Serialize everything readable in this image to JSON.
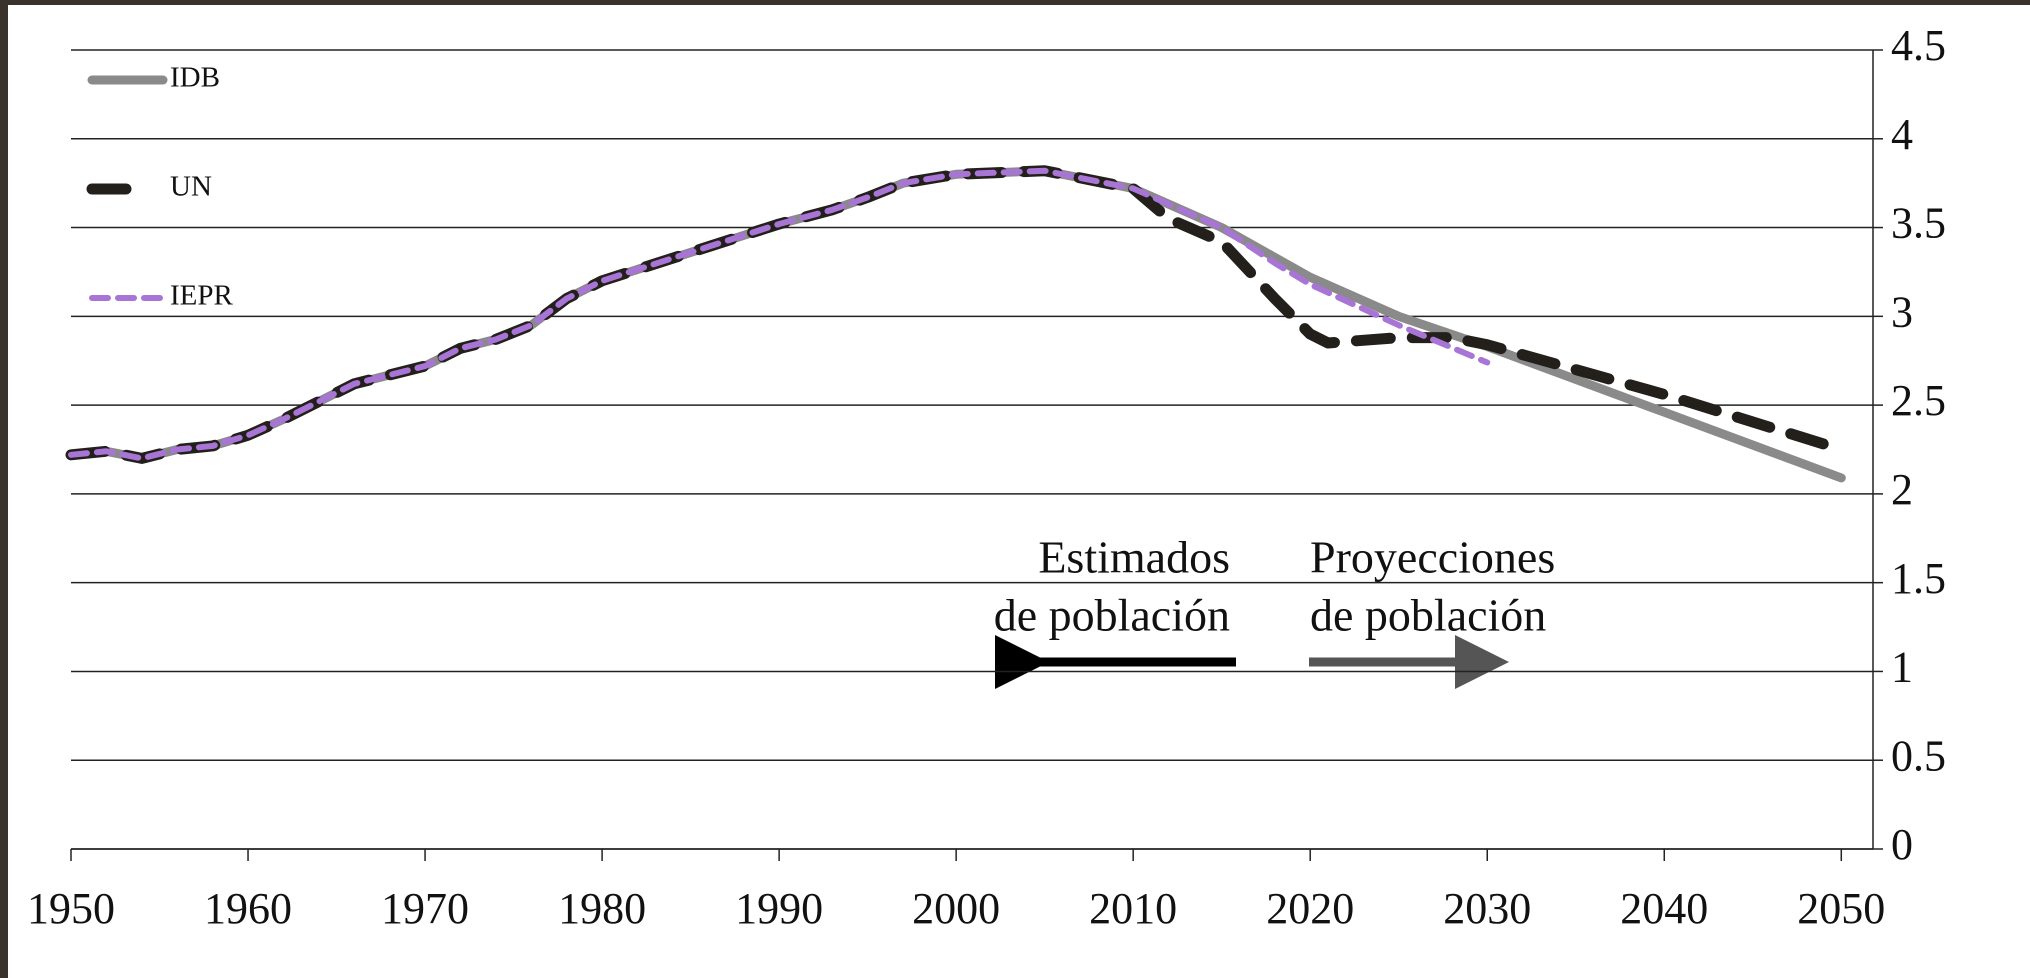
{
  "chart_data": {
    "type": "line",
    "series": [
      {
        "name": "IDB",
        "color": "#8a8a8a",
        "x": [
          1950,
          1952,
          1954,
          1956,
          1958,
          1960,
          1962,
          1964,
          1966,
          1968,
          1970,
          1972,
          1974,
          1976,
          1978,
          1980,
          1985,
          1990,
          1993,
          1995,
          1997,
          2000,
          2005,
          2010,
          2015,
          2020,
          2025,
          2030,
          2040,
          2050
        ],
        "values": [
          2.22,
          2.24,
          2.2,
          2.25,
          2.27,
          2.33,
          2.42,
          2.52,
          2.62,
          2.67,
          2.72,
          2.82,
          2.87,
          2.95,
          3.1,
          3.2,
          3.36,
          3.52,
          3.6,
          3.67,
          3.75,
          3.8,
          3.82,
          3.72,
          3.5,
          3.22,
          3.0,
          2.83,
          2.46,
          2.09
        ]
      },
      {
        "name": "UN",
        "color": "#231f1a",
        "x": [
          1950,
          1952,
          1954,
          1956,
          1958,
          1960,
          1962,
          1964,
          1966,
          1968,
          1970,
          1972,
          1974,
          1976,
          1978,
          1980,
          1985,
          1990,
          1993,
          1995,
          1997,
          2000,
          2005,
          2010,
          2012,
          2015,
          2018,
          2020,
          2021,
          2025,
          2028,
          2030,
          2040,
          2050
        ],
        "values": [
          2.22,
          2.24,
          2.2,
          2.25,
          2.27,
          2.33,
          2.42,
          2.52,
          2.62,
          2.67,
          2.72,
          2.82,
          2.87,
          2.95,
          3.1,
          3.2,
          3.36,
          3.52,
          3.6,
          3.67,
          3.75,
          3.8,
          3.82,
          3.72,
          3.55,
          3.42,
          3.1,
          2.9,
          2.85,
          2.88,
          2.88,
          2.84,
          2.56,
          2.25
        ]
      },
      {
        "name": "IEPR",
        "color": "#a875d6",
        "x": [
          1950,
          1952,
          1954,
          1956,
          1958,
          1960,
          1962,
          1964,
          1966,
          1968,
          1970,
          1972,
          1974,
          1976,
          1978,
          1980,
          1985,
          1990,
          1993,
          1995,
          1997,
          2000,
          2005,
          2010,
          2015,
          2018,
          2020,
          2025,
          2030
        ],
        "values": [
          2.22,
          2.24,
          2.2,
          2.25,
          2.27,
          2.33,
          2.42,
          2.52,
          2.62,
          2.67,
          2.72,
          2.82,
          2.87,
          2.95,
          3.1,
          3.2,
          3.36,
          3.52,
          3.6,
          3.67,
          3.75,
          3.8,
          3.82,
          3.72,
          3.5,
          3.3,
          3.18,
          2.95,
          2.74
        ]
      }
    ],
    "xlim": [
      1950,
      2051
    ],
    "xticks": [
      1950,
      1960,
      1970,
      1980,
      1990,
      2000,
      2010,
      2020,
      2030,
      2040,
      2050
    ],
    "ylim": [
      0,
      4.5
    ],
    "yticks": [
      0,
      0.5,
      1,
      1.5,
      2,
      2.5,
      3,
      3.5,
      4,
      4.5
    ],
    "grid": true,
    "legend": "upper left",
    "annotations": [
      {
        "lines": [
          "Estimados",
          "de población"
        ]
      },
      {
        "lines": [
          "Proyecciones",
          "de población"
        ]
      }
    ]
  }
}
